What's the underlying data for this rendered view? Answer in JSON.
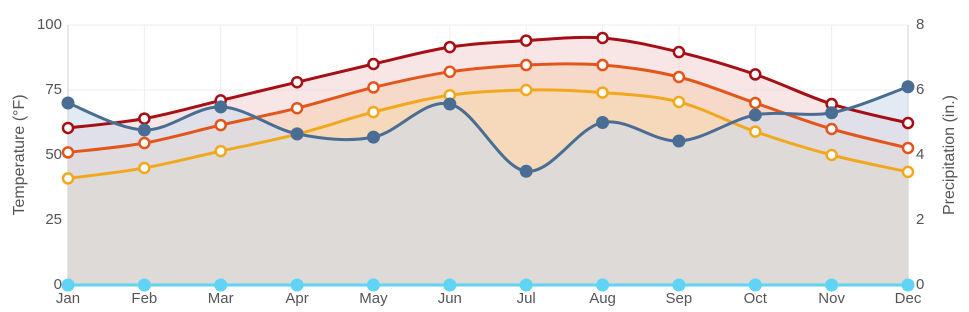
{
  "chart_data": {
    "type": "line",
    "categories": [
      "Jan",
      "Feb",
      "Mar",
      "Apr",
      "May",
      "Jun",
      "Jul",
      "Aug",
      "Sep",
      "Oct",
      "Nov",
      "Dec"
    ],
    "ylabel": "Temperature (°F)",
    "y2label": "Precipitation (in.)",
    "ylim": [
      0,
      100
    ],
    "yticks": [
      0,
      25,
      50,
      75,
      100
    ],
    "y2lim": [
      0,
      8
    ],
    "y2ticks": [
      0,
      2,
      4,
      6,
      8
    ],
    "grid": true,
    "series": [
      {
        "color": "#a50f15",
        "fill": "#f3d3d3",
        "hollow": true,
        "values": [
          60.4,
          64,
          71,
          78,
          85,
          91.5,
          94,
          95,
          89.6,
          81,
          69.6,
          62.3
        ]
      },
      {
        "color": "#e2561b",
        "fill": "#f6d0b6",
        "hollow": true,
        "values": [
          51,
          54.6,
          61.5,
          68,
          76,
          82,
          84.6,
          84.6,
          80,
          70,
          60,
          52.7
        ]
      },
      {
        "color": "#f2a81d",
        "fill": "#f5d7b0",
        "hollow": true,
        "values": [
          41,
          45,
          51.5,
          58,
          66.5,
          73,
          75,
          74,
          70.4,
          59,
          50,
          43.5
        ]
      },
      {
        "color": "#4a6d93",
        "fill": "#cfdcec",
        "hollow": false,
        "axis": "y2",
        "values": [
          5.6,
          4.77,
          5.48,
          4.65,
          4.55,
          5.57,
          3.5,
          5.0,
          4.43,
          5.23,
          5.3,
          6.1
        ]
      },
      {
        "color": "#5fd4f4",
        "fill": "none",
        "hollow": false,
        "axis": "y2",
        "values": [
          0,
          0,
          0,
          0,
          0,
          0,
          0,
          0,
          0,
          0,
          0,
          0
        ]
      }
    ]
  }
}
